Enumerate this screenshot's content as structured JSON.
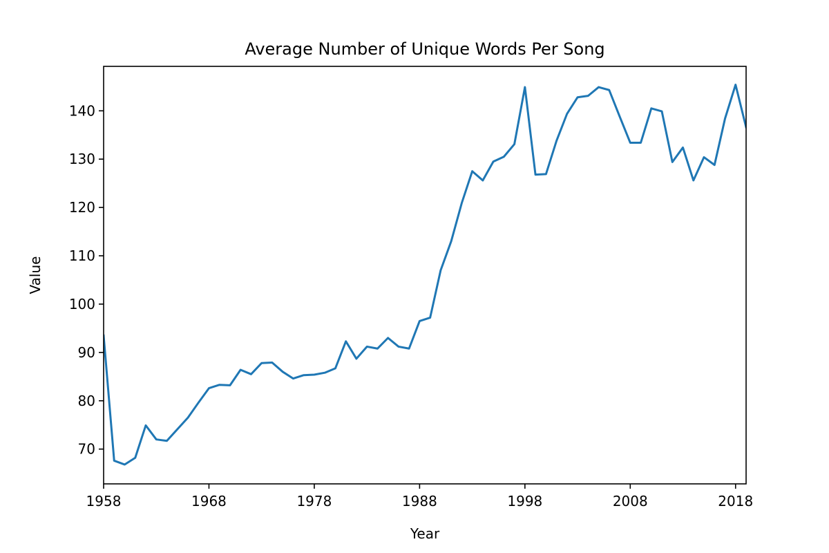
{
  "chart_data": {
    "type": "line",
    "title": "Average Number of Unique Words Per Song",
    "xlabel": "Year",
    "ylabel": "Value",
    "xlim": [
      1958,
      2019
    ],
    "ylim": [
      62.8,
      149.2
    ],
    "xticks": [
      1958,
      1968,
      1978,
      1988,
      1998,
      2008,
      2018
    ],
    "yticks": [
      70,
      80,
      90,
      100,
      110,
      120,
      130,
      140
    ],
    "grid": false,
    "legend": "none",
    "series": [
      {
        "color": "#1f77b4",
        "points": [
          [
            1958,
            93.5
          ],
          [
            1959,
            67.6
          ],
          [
            1960,
            66.8
          ],
          [
            1961,
            68.2
          ],
          [
            1962,
            74.9
          ],
          [
            1963,
            72.0
          ],
          [
            1964,
            71.7
          ],
          [
            1965,
            74.1
          ],
          [
            1966,
            76.5
          ],
          [
            1967,
            79.6
          ],
          [
            1968,
            82.6
          ],
          [
            1969,
            83.3
          ],
          [
            1970,
            83.2
          ],
          [
            1971,
            86.4
          ],
          [
            1972,
            85.5
          ],
          [
            1973,
            87.8
          ],
          [
            1974,
            87.9
          ],
          [
            1975,
            86.0
          ],
          [
            1976,
            84.6
          ],
          [
            1977,
            85.3
          ],
          [
            1978,
            85.4
          ],
          [
            1979,
            85.8
          ],
          [
            1980,
            86.7
          ],
          [
            1981,
            92.3
          ],
          [
            1982,
            88.7
          ],
          [
            1983,
            91.2
          ],
          [
            1984,
            90.8
          ],
          [
            1985,
            93.0
          ],
          [
            1986,
            91.2
          ],
          [
            1987,
            90.8
          ],
          [
            1988,
            96.5
          ],
          [
            1989,
            97.2
          ],
          [
            1990,
            107.0
          ],
          [
            1991,
            113.0
          ],
          [
            1992,
            120.9
          ],
          [
            1993,
            127.5
          ],
          [
            1994,
            125.6
          ],
          [
            1995,
            129.5
          ],
          [
            1996,
            130.5
          ],
          [
            1997,
            133.1
          ],
          [
            1998,
            144.9
          ],
          [
            1999,
            126.8
          ],
          [
            2000,
            126.9
          ],
          [
            2001,
            133.8
          ],
          [
            2002,
            139.4
          ],
          [
            2003,
            142.8
          ],
          [
            2004,
            143.1
          ],
          [
            2005,
            144.9
          ],
          [
            2006,
            144.3
          ],
          [
            2007,
            138.8
          ],
          [
            2008,
            133.4
          ],
          [
            2009,
            133.4
          ],
          [
            2010,
            140.5
          ],
          [
            2011,
            139.9
          ],
          [
            2012,
            129.4
          ],
          [
            2013,
            132.4
          ],
          [
            2014,
            125.6
          ],
          [
            2015,
            130.4
          ],
          [
            2016,
            128.8
          ],
          [
            2017,
            138.4
          ],
          [
            2018,
            145.4
          ],
          [
            2019,
            136.6
          ]
        ]
      }
    ]
  }
}
